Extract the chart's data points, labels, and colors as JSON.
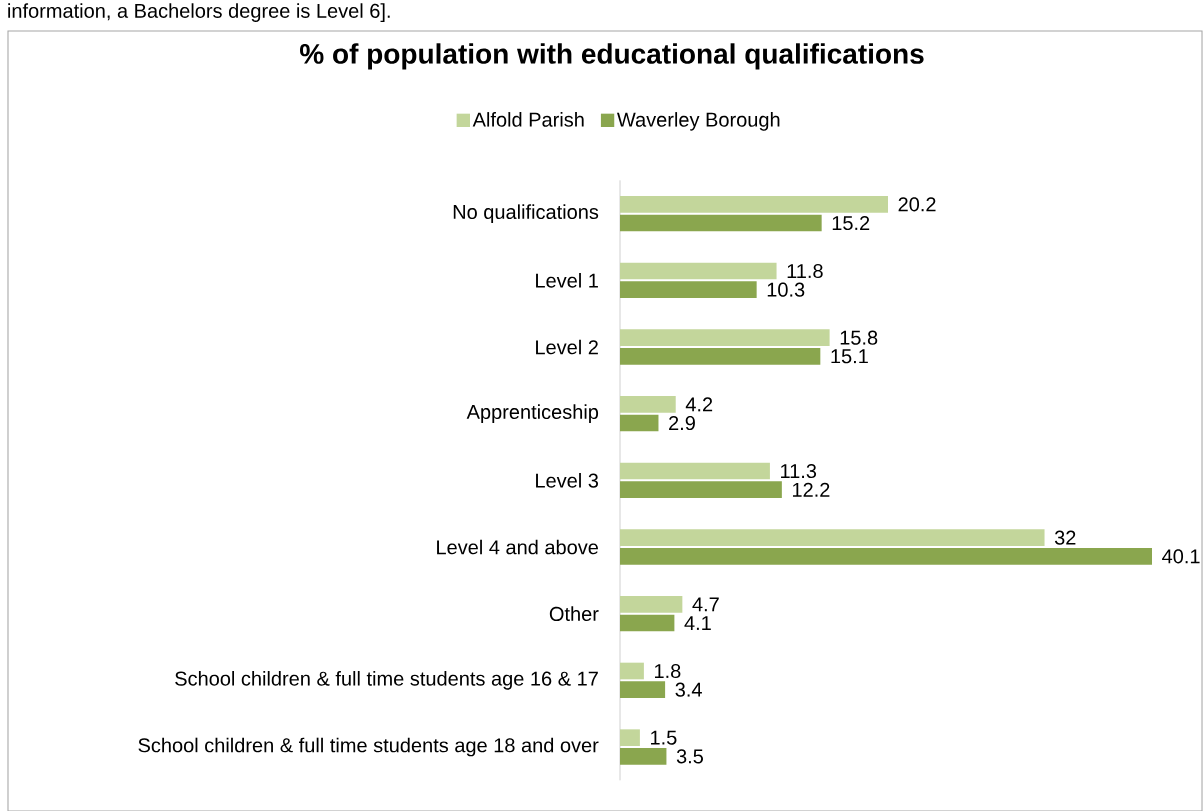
{
  "chart_data": {
    "type": "bar",
    "orientation": "horizontal",
    "title": "% of population with educational qualifications",
    "categories": [
      "No qualifications",
      "Level 1",
      "Level 2",
      "Apprenticeship",
      "Level 3",
      "Level 4 and above",
      "Other",
      "School children & full time students age 16 & 17",
      "School children & full time students age 18 and over"
    ],
    "series": [
      {
        "name": "Alfold Parish",
        "color": "#c3d69b",
        "values": [
          20.2,
          11.8,
          15.8,
          4.2,
          11.3,
          32,
          4.7,
          1.8,
          1.5
        ]
      },
      {
        "name": "Waverley Borough",
        "color": "#8aa64e",
        "values": [
          15.2,
          10.3,
          15.1,
          2.9,
          12.2,
          40.1,
          4.1,
          3.4,
          3.5
        ]
      }
    ],
    "data_labels": true,
    "legend": "top",
    "annotations": [
      "information, a Bachelors degree is Level 6]."
    ]
  }
}
